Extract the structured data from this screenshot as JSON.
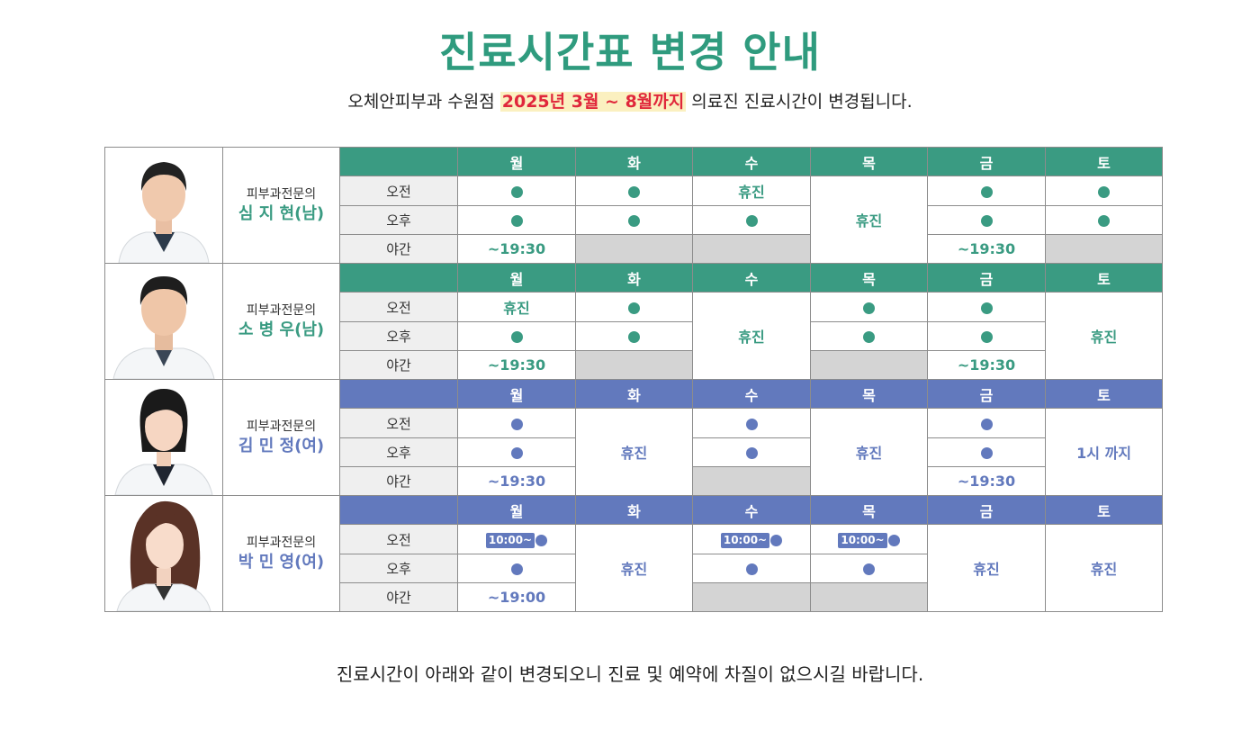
{
  "title": "진료시간표 변경 안내",
  "subtitle": {
    "pre": "오체안피부과 수원점 ",
    "highlight": "2025년 3월 ~ 8월까지",
    "post": " 의료진 진료시간이 변경됩니다."
  },
  "footer": "진료시간이 아래와 같이 변경되오니 진료 및 예약에 차질이 없으시길 바랍니다.",
  "days": [
    "월",
    "화",
    "수",
    "목",
    "금",
    "토"
  ],
  "periods": [
    "오전",
    "오후",
    "야간"
  ],
  "labels": {
    "off": "휴진",
    "night_1930": "~19:30",
    "night_1900": "~19:00",
    "start_1000": "10:00~",
    "until_1pm": "1시 까지"
  },
  "doctors": [
    {
      "specialty": "피부과전문의",
      "name": "심 지 현(남)",
      "theme": "green"
    },
    {
      "specialty": "피부과전문의",
      "name": "소 병 우(남)",
      "theme": "green"
    },
    {
      "specialty": "피부과전문의",
      "name": "김 민 정(여)",
      "theme": "blue"
    },
    {
      "specialty": "피부과전문의",
      "name": "박 민 영(여)",
      "theme": "blue"
    }
  ],
  "colors": {
    "green": "#3a9b82",
    "blue": "#6279bd",
    "title": "#2f9b7e",
    "highlight": "#e0273b",
    "closed_gray": "#d4d4d4"
  },
  "icons": {
    "open": "filled-circle-icon",
    "portrait": "doctor-portrait-icon"
  }
}
